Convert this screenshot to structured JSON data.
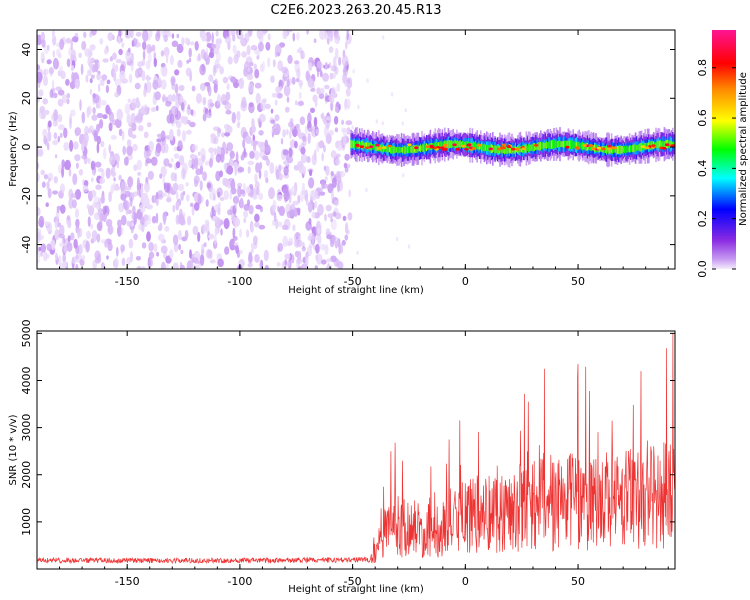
{
  "title": "C2E6.2023.263.20.45.R13",
  "chart_data": [
    {
      "type": "heatmap",
      "title": "C2E6.2023.263.20.45.R13",
      "xlabel": "Height of straight line (km)",
      "ylabel": "Frequency (Hz)",
      "xlim": [
        -190,
        93
      ],
      "ylim": [
        -50,
        48
      ],
      "x_ticks": [
        -150,
        -100,
        -50,
        0,
        50
      ],
      "y_ticks": [
        -40,
        -20,
        0,
        20,
        40
      ],
      "colorbar": {
        "label": "Normalized spectral amplitude",
        "range": [
          0.0,
          0.95
        ],
        "ticks": [
          0.0,
          0.2,
          0.4,
          0.6,
          0.8
        ],
        "colormap": [
          "#f4ecfd",
          "#c89cf2",
          "#8a2be2",
          "#0000ff",
          "#00ffff",
          "#00ff00",
          "#ffff00",
          "#ff8c00",
          "#ff0000",
          "#ff1493"
        ]
      },
      "regions": [
        {
          "x_range": [
            -190,
            -51
          ],
          "description": "broadband noise, amplitude ~0.0–0.1 across all frequencies"
        },
        {
          "x_range": [
            -51,
            93
          ],
          "frequency_center": 0,
          "bandwidth_hz": 12,
          "peak_amplitude": 0.85,
          "description": "narrow signal band centered near 0 Hz"
        }
      ],
      "grid": false
    },
    {
      "type": "line",
      "xlabel": "Height of straight line (km)",
      "ylabel": "SNR (10 * v/v)",
      "xlim": [
        -190,
        93
      ],
      "ylim": [
        0,
        5050
      ],
      "x_ticks": [
        -150,
        -100,
        -50,
        0,
        50
      ],
      "y_ticks": [
        1000,
        2000,
        3000,
        4000,
        5000
      ],
      "color": "#ee3333",
      "series": [
        {
          "x": [
            -190,
            -150,
            -100,
            -60,
            -42,
            -38,
            -35,
            -30,
            -25,
            -20,
            -15,
            -10,
            -5,
            0,
            5,
            10,
            20,
            30,
            40,
            50,
            60,
            70,
            80,
            93
          ],
          "y": [
            180,
            180,
            180,
            190,
            200,
            600,
            900,
            1000,
            950,
            900,
            850,
            1000,
            1100,
            1200,
            1250,
            1300,
            1350,
            1450,
            1500,
            1550,
            1600,
            1600,
            1650,
            1700
          ]
        }
      ],
      "peaks": [
        [
          -33,
          2500
        ],
        [
          35,
          4250
        ],
        [
          50,
          4350
        ],
        [
          78,
          4200
        ],
        [
          92,
          5000
        ]
      ],
      "grid": false
    }
  ]
}
